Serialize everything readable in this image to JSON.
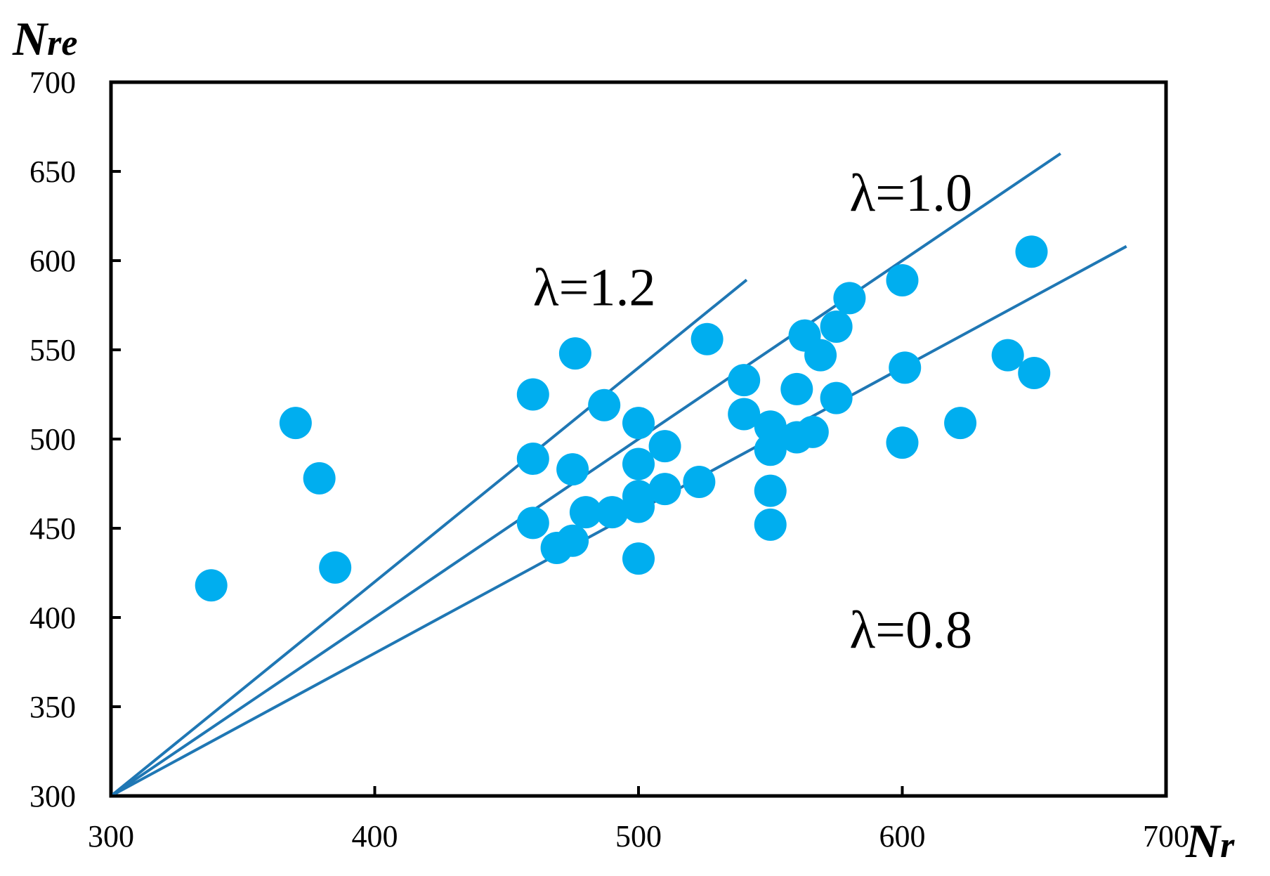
{
  "chart_data": {
    "type": "scatter",
    "title": "",
    "xlabel": {
      "main": "N",
      "sub": "r"
    },
    "ylabel": {
      "main": "N",
      "sub": "re"
    },
    "xlim": [
      300,
      700
    ],
    "ylim": [
      300,
      700
    ],
    "x_ticks": [
      300,
      400,
      500,
      600,
      700
    ],
    "y_ticks": [
      300,
      350,
      400,
      450,
      500,
      550,
      600,
      650,
      700
    ],
    "x_tick_labels": [
      "300",
      "400",
      "500",
      "600",
      "700"
    ],
    "y_tick_labels": [
      "300",
      "350",
      "400",
      "450",
      "500",
      "550",
      "600",
      "650",
      "700"
    ],
    "grid": false,
    "legend": false,
    "colors": {
      "points": "#00aeef",
      "lines": "#1f77b4",
      "axes": "#000000"
    },
    "points": [
      [
        338,
        418
      ],
      [
        370,
        509
      ],
      [
        379,
        478
      ],
      [
        385,
        428
      ],
      [
        460,
        525
      ],
      [
        460,
        489
      ],
      [
        460,
        453
      ],
      [
        469,
        439
      ],
      [
        475,
        443
      ],
      [
        475,
        483
      ],
      [
        476,
        548
      ],
      [
        480,
        459
      ],
      [
        487,
        519
      ],
      [
        490,
        459
      ],
      [
        500,
        433
      ],
      [
        500,
        462
      ],
      [
        500,
        468
      ],
      [
        500,
        486
      ],
      [
        500,
        509
      ],
      [
        510,
        496
      ],
      [
        510,
        472
      ],
      [
        523,
        476
      ],
      [
        526,
        556
      ],
      [
        540,
        533
      ],
      [
        540,
        514
      ],
      [
        550,
        507
      ],
      [
        550,
        494
      ],
      [
        550,
        471
      ],
      [
        550,
        452
      ],
      [
        560,
        528
      ],
      [
        560,
        501
      ],
      [
        563,
        558
      ],
      [
        566,
        504
      ],
      [
        569,
        547
      ],
      [
        575,
        563
      ],
      [
        575,
        523
      ],
      [
        580,
        579
      ],
      [
        600,
        589
      ],
      [
        601,
        540
      ],
      [
        600,
        498
      ],
      [
        622,
        509
      ],
      [
        640,
        547
      ],
      [
        649,
        605
      ],
      [
        650,
        537
      ]
    ],
    "reference_lines": [
      {
        "label": "λ=1.2",
        "slope": 1.2,
        "x_end": 541,
        "label_at": [
          460,
          575
        ]
      },
      {
        "label": "λ=1.0",
        "slope": 1.0,
        "x_end": 660,
        "label_at": [
          580,
          628
        ]
      },
      {
        "label": "λ=0.8",
        "slope": 0.8,
        "x_end": 685,
        "label_at": [
          580,
          383
        ]
      }
    ]
  }
}
